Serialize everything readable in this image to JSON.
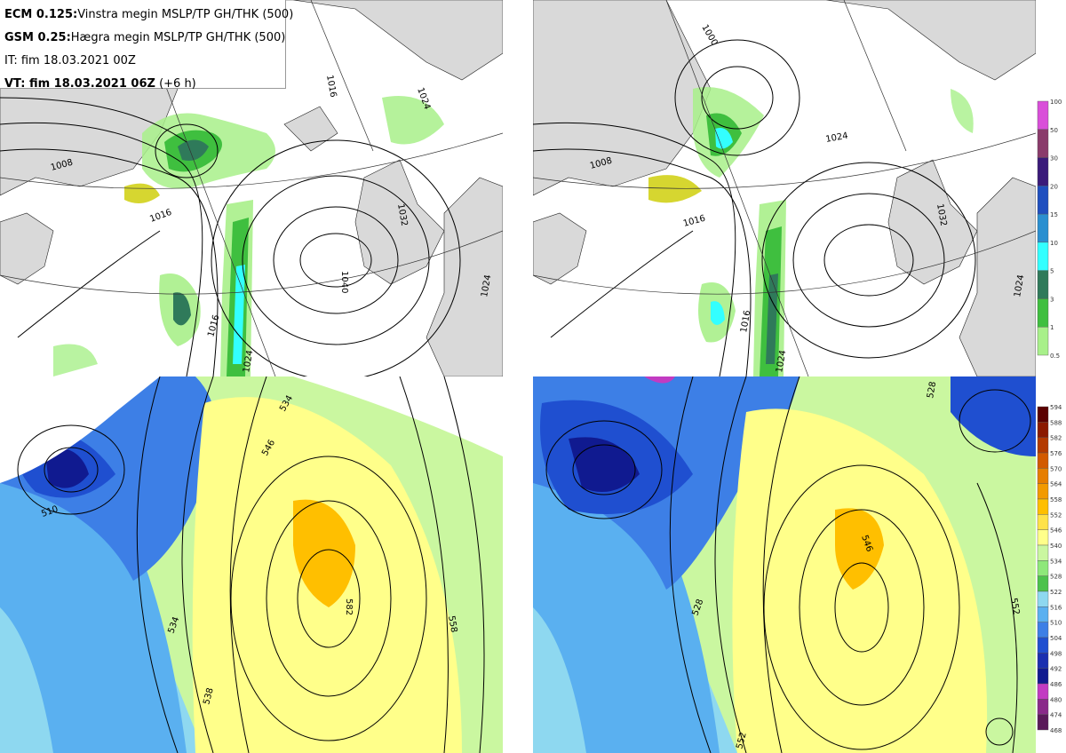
{
  "info": {
    "line1_bold": "ECM 0.125:",
    "line1_rest": "Vinstra megin MSLP/TP GH/THK (500)",
    "line2_bold": "GSM 0.25:",
    "line2_rest": "Hægra megin MSLP/TP GH/THK (500)",
    "line3": "IT: fim 18.03.2021 00Z",
    "line4_bold": "VT: fim 18.03.2021 06Z",
    "line4_rest": "(+6 h)"
  },
  "precip_colorbar": {
    "levels": [
      "100",
      "50",
      "30",
      "20",
      "15",
      "10",
      "5",
      "3",
      "1",
      "0.5"
    ],
    "colors": [
      "#d94fd9",
      "#8a3b6b",
      "#3a1a7a",
      "#1f4fbf",
      "#2a8fd0",
      "#33ffff",
      "#2f7a5a",
      "#3fbf3f",
      "#a8f08a",
      "#d6d630"
    ]
  },
  "thickness_colorbar": {
    "levels": [
      "594",
      "588",
      "582",
      "576",
      "570",
      "564",
      "558",
      "552",
      "546",
      "540",
      "534",
      "528",
      "522",
      "516",
      "510",
      "504",
      "498",
      "492",
      "486",
      "480",
      "474",
      "468"
    ],
    "colors": [
      "#5a0000",
      "#8b1a00",
      "#b33a00",
      "#d25a00",
      "#e67e00",
      "#f29a00",
      "#ffbf00",
      "#ffe24a",
      "#ffff8a",
      "#caf7a0",
      "#8ee87a",
      "#4cc24c",
      "#8ed8f0",
      "#5ab0f0",
      "#3d7fe6",
      "#1f4fd0",
      "#1a2fb0",
      "#101a90",
      "#c23bc2",
      "#8a2a8a",
      "#5a1a5a",
      "#3a0a3a"
    ]
  },
  "map_labels": {
    "ecm_mslp": [
      "1008",
      "1016",
      "1016",
      "1024",
      "1016",
      "1024",
      "1040",
      "1032",
      "1024"
    ],
    "gsm_mslp": [
      "1000",
      "1008",
      "1016",
      "1016",
      "1024",
      "1024",
      "1032",
      "1024"
    ],
    "ecm_thk": [
      "510",
      "534",
      "538",
      "546",
      "582",
      "558",
      "534"
    ],
    "gsm_thk": [
      "528",
      "528",
      "552",
      "546",
      "552"
    ]
  },
  "colors": {
    "land": "#d8d8d8",
    "sea": "#ffffff",
    "contour": "#000000"
  }
}
